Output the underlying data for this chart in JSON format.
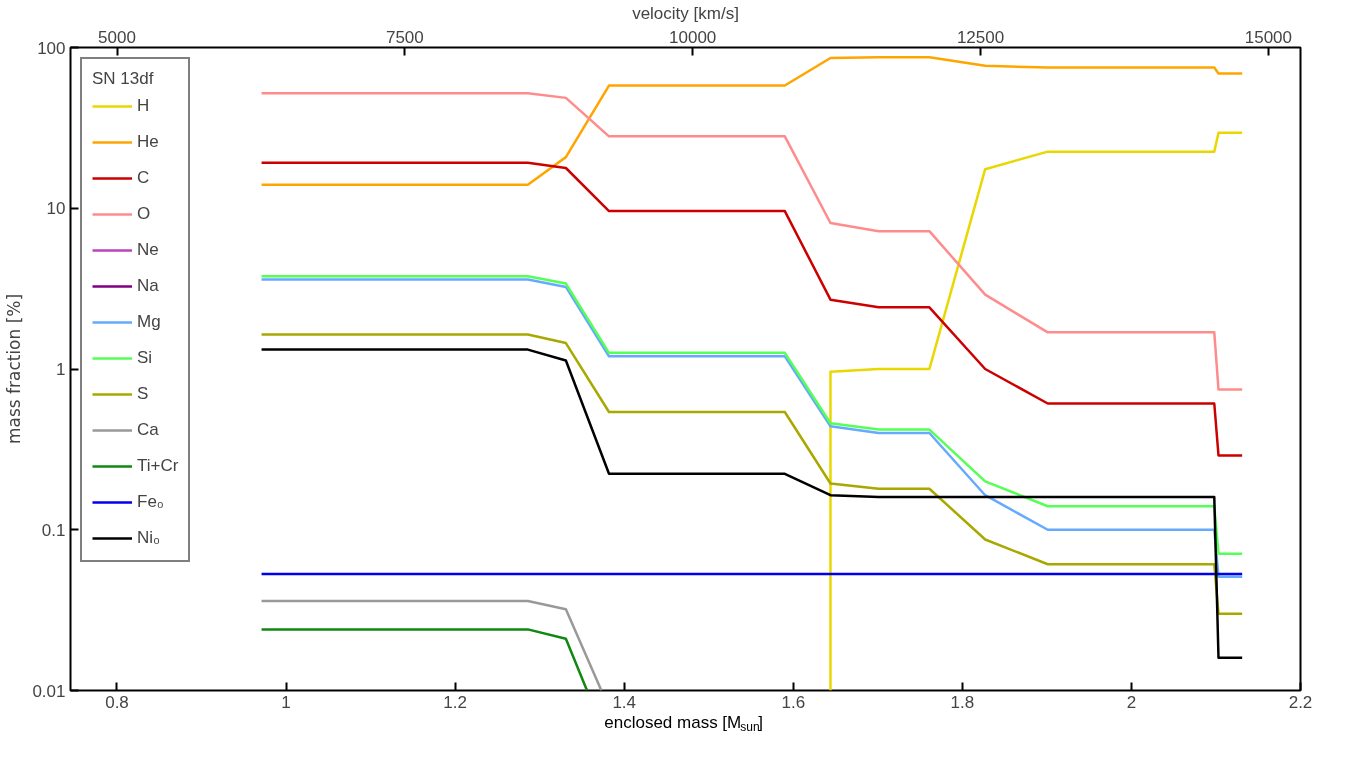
{
  "chart_data": {
    "type": "line",
    "xlabel": "enclosed mass [M$_{sun}$]",
    "ylabel": "mass fraction [%]",
    "x2label": "velocity [km/s]",
    "legend_title": "SN 13df",
    "xlim": [
      0.745,
      2.2
    ],
    "xticks": [
      0.8,
      1,
      1.2,
      1.4,
      1.6,
      1.8,
      2,
      2.2
    ],
    "x2lim": [
      4596,
      15279
    ],
    "x2ticks": [
      5000,
      7500,
      10000,
      12500,
      15000
    ],
    "ylim": [
      0.01,
      100
    ],
    "yticks": [
      0.01,
      0.1,
      1,
      10,
      100
    ],
    "log": "y",
    "grid": false,
    "legend": "top left",
    "line_style": "solid",
    "marker": "none",
    "x": [
      0.971,
      1.286,
      1.331,
      1.382,
      1.59,
      1.644,
      1.701,
      1.761,
      1.827,
      1.901,
      2.098,
      2.103,
      2.131
    ],
    "series": [
      {
        "name": "H",
        "color": "#e8d800",
        "x": [
          1.644,
          1.644,
          1.701,
          1.761,
          1.827,
          1.901,
          2.098,
          2.103,
          2.131
        ],
        "values": [
          0.01,
          0.96,
          1.0,
          1.0,
          17.5,
          22.5,
          22.5,
          29.5,
          29.5
        ]
      },
      {
        "name": "He",
        "color": "#ffa500",
        "values": [
          14,
          14,
          20.8,
          58,
          58,
          86,
          87,
          87,
          77,
          75,
          75,
          69,
          69
        ]
      },
      {
        "name": "C",
        "color": "#cc0000",
        "values": [
          19.2,
          19.2,
          17.8,
          9.6,
          9.6,
          2.7,
          2.42,
          2.42,
          1.0,
          0.61,
          0.61,
          0.29,
          0.29
        ]
      },
      {
        "name": "O",
        "color": "#ff8c8c",
        "values": [
          52,
          52,
          48.6,
          28,
          28,
          8.1,
          7.2,
          7.2,
          2.9,
          1.69,
          1.69,
          0.745,
          0.745
        ]
      },
      {
        "name": "Ne",
        "color": "#bb44bb",
        "values": [
          null,
          null,
          null,
          null,
          null,
          null,
          null,
          null,
          null,
          null,
          null,
          null,
          null
        ]
      },
      {
        "name": "Na",
        "color": "#800080",
        "values": [
          null,
          null,
          null,
          null,
          null,
          null,
          null,
          null,
          null,
          null,
          null,
          null,
          null
        ]
      },
      {
        "name": "Mg",
        "color": "#66aaff",
        "values": [
          3.6,
          3.6,
          3.24,
          1.2,
          1.2,
          0.44,
          0.4,
          0.4,
          0.164,
          0.1,
          0.1,
          0.051,
          0.051
        ]
      },
      {
        "name": "Si",
        "color": "#55ff55",
        "values": [
          3.78,
          3.78,
          3.4,
          1.26,
          1.26,
          0.46,
          0.42,
          0.42,
          0.2,
          0.14,
          0.14,
          0.071,
          0.071
        ]
      },
      {
        "name": "S",
        "color": "#a8a800",
        "values": [
          1.64,
          1.64,
          1.45,
          0.54,
          0.54,
          0.194,
          0.18,
          0.18,
          0.087,
          0.061,
          0.061,
          0.03,
          0.03
        ]
      },
      {
        "name": "Ca",
        "color": "#999999",
        "x": [
          0.971,
          1.286,
          1.331,
          1.373
        ],
        "values": [
          0.036,
          0.036,
          0.032,
          0.01
        ]
      },
      {
        "name": "Ti+Cr",
        "color": "#118811",
        "x": [
          0.971,
          1.286,
          1.331,
          1.356
        ],
        "values": [
          0.024,
          0.024,
          0.021,
          0.01
        ]
      },
      {
        "name": "Fe₀",
        "color": "#0000ee",
        "x": [
          0.971,
          2.131
        ],
        "values": [
          0.053,
          0.053
        ]
      },
      {
        "name": "Ni₀",
        "color": "#000000",
        "values": [
          1.32,
          1.32,
          1.13,
          0.223,
          0.223,
          0.164,
          0.16,
          0.16,
          0.16,
          0.16,
          0.16,
          0.016,
          0.016
        ]
      }
    ]
  }
}
